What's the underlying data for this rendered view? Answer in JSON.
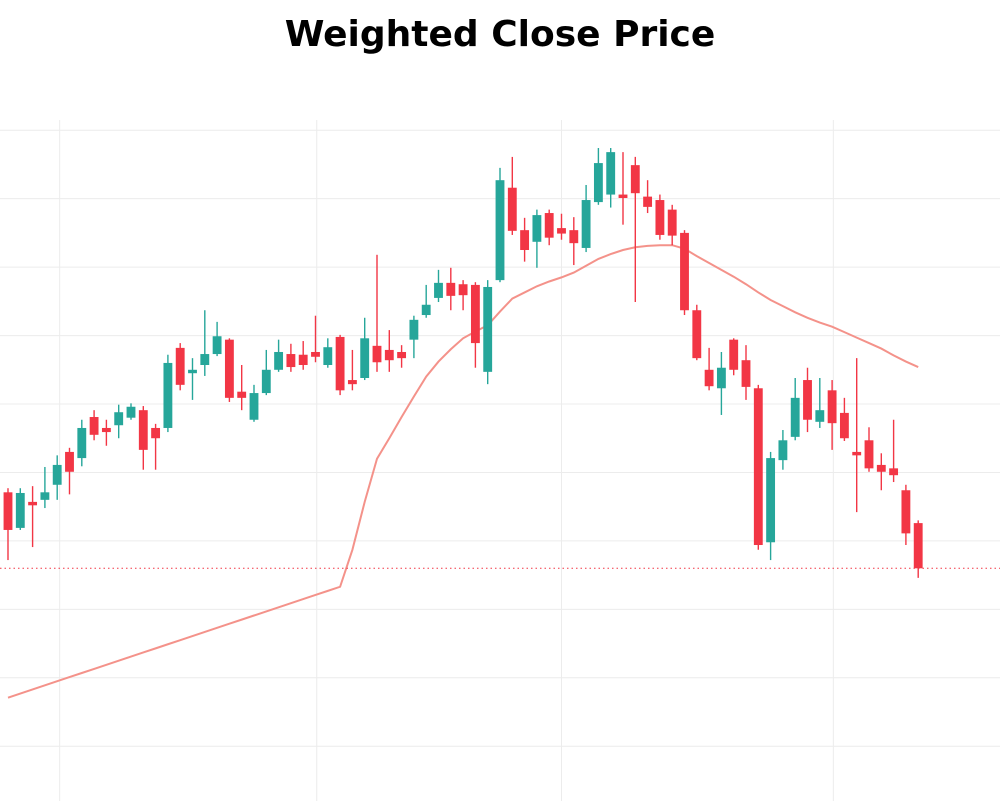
{
  "chart_data": {
    "type": "candlestick",
    "title": "Weighted Close Price",
    "x": [
      0,
      1,
      2,
      3,
      4,
      5,
      6,
      7,
      8,
      9,
      10,
      11,
      12,
      13,
      14,
      15,
      16,
      17,
      18,
      19,
      20,
      21,
      22,
      23,
      24,
      25,
      26,
      27,
      28,
      29,
      30,
      31,
      32,
      33,
      34,
      35,
      36,
      37,
      38,
      39,
      40,
      41,
      42,
      43,
      44,
      45,
      46,
      47,
      48,
      49,
      50,
      51,
      52,
      53,
      54,
      55,
      56,
      57,
      58,
      59,
      60,
      61,
      62,
      63,
      64,
      65,
      66,
      67,
      68,
      69,
      70,
      71,
      72,
      73,
      74
    ],
    "open": [
      37.1,
      31.9,
      35.7,
      36.0,
      38.2,
      43.0,
      42.1,
      48.1,
      46.5,
      46.9,
      48.0,
      49.1,
      46.5,
      46.5,
      58.2,
      54.5,
      55.7,
      57.3,
      59.4,
      51.8,
      47.7,
      51.6,
      55.0,
      57.3,
      57.2,
      57.6,
      55.7,
      59.8,
      53.5,
      53.8,
      58.5,
      57.9,
      57.6,
      59.4,
      63.0,
      65.5,
      67.7,
      67.5,
      67.4,
      54.7,
      68.1,
      81.6,
      75.4,
      73.7,
      77.9,
      75.7,
      75.4,
      72.8,
      79.5,
      80.6,
      80.6,
      84.9,
      80.3,
      79.8,
      78.4,
      75.0,
      63.7,
      55.0,
      52.3,
      59.4,
      56.4,
      52.3,
      29.8,
      41.8,
      45.2,
      53.5,
      47.4,
      52.0,
      48.7,
      43.0,
      44.7,
      41.1,
      40.6,
      37.4,
      32.6
    ],
    "high": [
      37.7,
      37.7,
      38.0,
      40.8,
      42.5,
      43.6,
      47.7,
      49.1,
      47.7,
      49.9,
      50.1,
      49.7,
      47.1,
      57.2,
      58.9,
      56.7,
      63.7,
      62.0,
      59.6,
      55.7,
      52.8,
      57.9,
      59.4,
      58.8,
      59.2,
      62.9,
      59.6,
      60.1,
      57.9,
      62.6,
      71.8,
      60.8,
      58.6,
      62.9,
      67.4,
      69.6,
      69.9,
      68.1,
      67.8,
      68.1,
      84.5,
      86.1,
      77.2,
      78.4,
      78.4,
      77.8,
      77.3,
      82.0,
      87.4,
      87.4,
      86.8,
      86.1,
      82.7,
      80.6,
      79.1,
      75.4,
      64.5,
      58.2,
      57.6,
      59.6,
      58.6,
      52.8,
      43.0,
      46.2,
      53.8,
      55.3,
      53.8,
      53.5,
      50.9,
      56.7,
      46.6,
      42.8,
      47.7,
      38.2,
      33.0
    ],
    "low": [
      27.2,
      31.6,
      29.1,
      34.8,
      36.0,
      36.8,
      40.9,
      44.7,
      43.9,
      45.0,
      47.7,
      40.4,
      40.4,
      45.9,
      52.0,
      50.6,
      54.1,
      57.0,
      50.3,
      49.1,
      47.4,
      51.3,
      54.7,
      54.7,
      55.0,
      56.1,
      55.3,
      51.3,
      52.0,
      53.5,
      54.7,
      54.7,
      55.3,
      56.7,
      62.6,
      64.9,
      63.7,
      63.7,
      55.3,
      52.9,
      67.8,
      74.7,
      70.8,
      69.9,
      73.2,
      74.0,
      70.3,
      72.2,
      79.1,
      78.7,
      76.2,
      64.9,
      77.9,
      74.0,
      73.2,
      63.0,
      56.4,
      52.0,
      48.4,
      54.2,
      50.6,
      28.7,
      27.2,
      40.4,
      44.7,
      45.9,
      46.5,
      43.3,
      44.6,
      34.2,
      40.1,
      37.4,
      38.6,
      29.4,
      24.6
    ],
    "close": [
      31.6,
      37.0,
      35.2,
      37.1,
      41.1,
      40.1,
      46.5,
      45.5,
      45.9,
      48.8,
      49.6,
      43.3,
      45.0,
      56.0,
      52.8,
      55.0,
      57.3,
      59.9,
      50.9,
      50.9,
      51.6,
      55.0,
      57.6,
      55.4,
      55.7,
      56.9,
      58.3,
      52.0,
      52.9,
      59.6,
      56.1,
      56.4,
      56.7,
      62.3,
      64.5,
      67.7,
      65.8,
      65.9,
      58.9,
      67.1,
      82.7,
      75.3,
      72.5,
      77.6,
      74.3,
      74.9,
      73.5,
      79.8,
      85.2,
      86.8,
      80.1,
      80.8,
      78.8,
      74.7,
      74.6,
      63.7,
      56.7,
      52.6,
      55.3,
      55.0,
      52.5,
      29.4,
      42.1,
      44.7,
      50.9,
      47.7,
      49.1,
      47.2,
      45.0,
      42.5,
      40.6,
      40.1,
      39.6,
      31.1,
      26.0
    ],
    "up_color": "#26a69a",
    "down_color": "#f23645",
    "overlay_line": {
      "color": "#f4928a",
      "values": [
        7.1,
        7.7,
        8.3,
        8.9,
        9.5,
        10.1,
        10.7,
        11.3,
        11.9,
        12.5,
        13.1,
        13.7,
        14.3,
        14.9,
        15.5,
        16.1,
        16.7,
        17.3,
        17.9,
        18.5,
        19.1,
        19.7,
        20.3,
        20.9,
        21.5,
        22.1,
        22.7,
        23.3,
        28.7,
        35.7,
        42.0,
        45.0,
        48.1,
        51.1,
        54.0,
        56.2,
        58.0,
        59.6,
        60.6,
        61.5,
        63.5,
        65.4,
        66.3,
        67.2,
        67.9,
        68.5,
        69.2,
        70.2,
        71.2,
        71.9,
        72.5,
        72.9,
        73.1,
        73.2,
        73.2,
        72.7,
        71.6,
        70.6,
        69.6,
        68.6,
        67.5,
        66.3,
        65.2,
        64.3,
        63.4,
        62.6,
        61.9,
        61.3,
        60.5,
        59.7,
        58.9,
        58.1,
        57.1,
        56.2,
        55.4
      ]
    },
    "xlim": [
      -0.65,
      80.65
    ],
    "xticks": [
      4.2,
      25.1,
      45,
      67.1
    ],
    "ylim": [
      -8,
      95
    ],
    "yticks": [
      0,
      10,
      20,
      30,
      40,
      50,
      60,
      70,
      80,
      90
    ],
    "grid": true,
    "last_price_line": true
  }
}
